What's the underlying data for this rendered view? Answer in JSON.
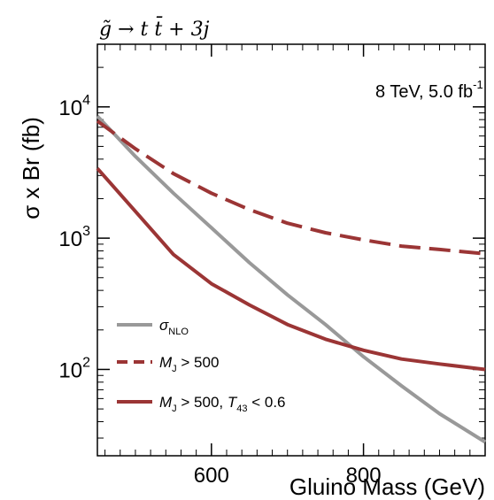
{
  "header_text": "g̃ → t t̄ + 3j",
  "annotation": {
    "main": "8 TeV, 5.0 fb",
    "sup": "-1"
  },
  "chart_data": {
    "type": "line",
    "title": "",
    "xlabel": "Gluino Mass (GeV)",
    "ylabel": "σ x Br (fb)",
    "xlim": [
      450,
      960
    ],
    "ylim": [
      22,
      30000
    ],
    "yscale": "log",
    "x_ticks": [
      600,
      800
    ],
    "y_ticks": [
      {
        "value": 100,
        "base": "10",
        "exp": "2"
      },
      {
        "value": 1000,
        "base": "10",
        "exp": "3"
      },
      {
        "value": 10000,
        "base": "10",
        "exp": "4"
      }
    ],
    "grid": false,
    "legend_position": "bottom-left",
    "series": [
      {
        "name": "σ",
        "name_sub": "NLO",
        "color": "#999999",
        "style": "solid",
        "x": [
          450,
          500,
          550,
          600,
          650,
          700,
          750,
          800,
          850,
          900,
          960
        ],
        "y": [
          8500,
          4200,
          2200,
          1200,
          650,
          370,
          220,
          125,
          75,
          46,
          28
        ]
      },
      {
        "name": "M_J > 500",
        "name_parts": [
          "M",
          "J",
          " > 500"
        ],
        "color": "#9b3535",
        "style": "dashed",
        "x": [
          450,
          500,
          550,
          600,
          650,
          700,
          750,
          800,
          850,
          900,
          960
        ],
        "y": [
          7800,
          4800,
          3100,
          2200,
          1650,
          1300,
          1100,
          970,
          870,
          820,
          760
        ]
      },
      {
        "name": "M_J > 500, T_43 < 0.6",
        "name_parts": [
          "M",
          "J",
          " > 500, ",
          "T",
          "43",
          " < 0.6"
        ],
        "color": "#9b3535",
        "style": "solid",
        "x": [
          450,
          500,
          550,
          600,
          650,
          700,
          750,
          800,
          850,
          900,
          960
        ],
        "y": [
          3400,
          1600,
          750,
          450,
          310,
          220,
          170,
          140,
          120,
          110,
          100
        ]
      }
    ]
  }
}
